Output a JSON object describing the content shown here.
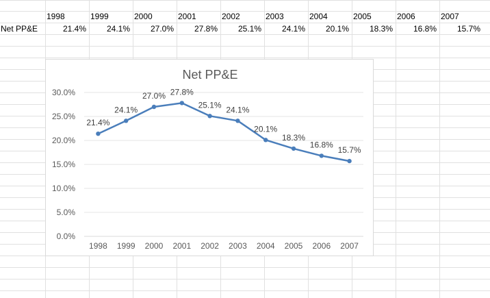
{
  "sheet": {
    "header_row": [
      "1998",
      "1999",
      "2000",
      "2001",
      "2002",
      "2003",
      "2004",
      "2005",
      "2006",
      "2007"
    ],
    "row_label": "Net PP&E",
    "row_values": [
      "21.4%",
      "24.1%",
      "27.0%",
      "27.8%",
      "25.1%",
      "24.1%",
      "20.1%",
      "18.3%",
      "16.8%",
      "15.7%"
    ]
  },
  "chart_data": {
    "type": "line",
    "title": "Net PP&E",
    "categories": [
      "1998",
      "1999",
      "2000",
      "2001",
      "2002",
      "2003",
      "2004",
      "2005",
      "2006",
      "2007"
    ],
    "series": [
      {
        "values": [
          21.4,
          24.1,
          27.0,
          27.8,
          25.1,
          24.1,
          20.1,
          18.3,
          16.8,
          15.7
        ],
        "labels": [
          "21.4%",
          "24.1%",
          "27.0%",
          "27.8%",
          "25.1%",
          "24.1%",
          "20.1%",
          "18.3%",
          "16.8%",
          "15.7%"
        ]
      }
    ],
    "ylim": [
      0,
      30
    ],
    "yticks": [
      "0.0%",
      "5.0%",
      "10.0%",
      "15.0%",
      "20.0%",
      "25.0%",
      "30.0%"
    ],
    "ytick_values": [
      0,
      5,
      10,
      15,
      20,
      25,
      30
    ],
    "grid": true,
    "line_color": "#4a7ebb"
  }
}
